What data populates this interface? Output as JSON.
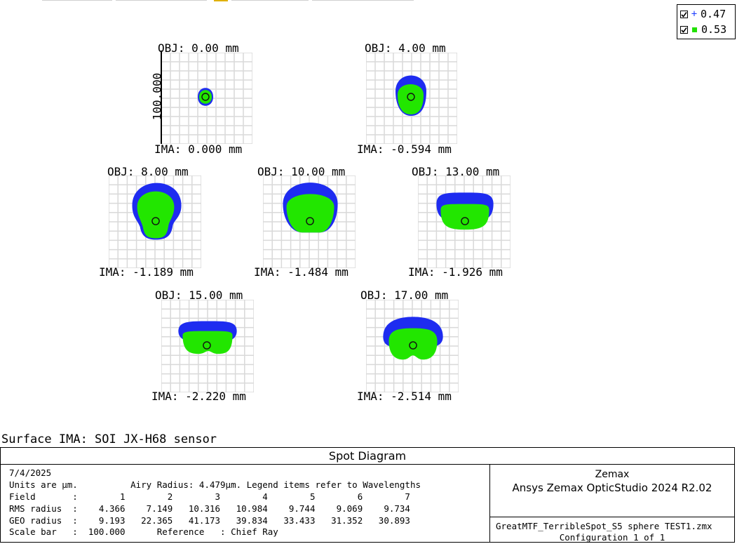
{
  "legend": {
    "items": [
      {
        "wavelength": "0.47",
        "marker": "plus",
        "color": "#1f3fff"
      },
      {
        "wavelength": "0.53",
        "marker": "square",
        "color": "#22e000"
      }
    ]
  },
  "colors": {
    "grid": "#d9d9d9",
    "blue": "#1e2cf0",
    "green": "#22e600",
    "circle": "#111111"
  },
  "scale_bar_label": "100.000",
  "fields": [
    {
      "obj": "OBJ: 0.00 mm",
      "ima": "IMA: 0.000 mm"
    },
    {
      "obj": "OBJ: 4.00 mm",
      "ima": "IMA: -0.594 mm"
    },
    {
      "obj": "OBJ: 8.00 mm",
      "ima": "IMA: -1.189 mm"
    },
    {
      "obj": "OBJ: 10.00 mm",
      "ima": "IMA: -1.484 mm"
    },
    {
      "obj": "OBJ: 13.00 mm",
      "ima": "IMA: -1.926 mm"
    },
    {
      "obj": "OBJ: 15.00 mm",
      "ima": "IMA: -2.220 mm"
    },
    {
      "obj": "OBJ: 17.00 mm",
      "ima": "IMA: -2.514 mm"
    }
  ],
  "surface": "Surface IMA: SOI JX-H68 sensor",
  "footer": {
    "title": "Spot Diagram",
    "date": "7/4/2025",
    "units_line": "Units are µm.          Airy Radius: 4.479µm. Legend items refer to Wavelengths",
    "field_line": "Field       :        1        2        3        4        5        6        7",
    "rms_line": "RMS radius  :    4.366    7.149   10.316   10.984    9.744    9.069    9.734",
    "geo_line": "GEO radius  :    9.193   22.365   41.173   39.834   33.433   31.352   30.893",
    "scale_line": "Scale bar   :  100.000      Reference   : Chief Ray",
    "company": "Zemax",
    "product": "Ansys Zemax OpticStudio 2024 R2.02",
    "file": "GreatMTF_TerribleSpot_S5 sphere TEST1.zmx",
    "config": "Configuration 1 of 1"
  }
}
